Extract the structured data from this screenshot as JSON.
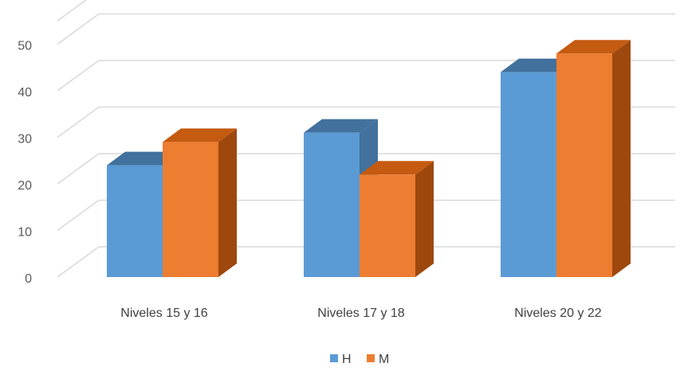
{
  "chart_data": {
    "type": "bar",
    "style": "3d-clustered-column",
    "categories": [
      "Niveles 15 y 16",
      "Niveles 17 y 18",
      "Niveles 20 y 22"
    ],
    "series": [
      {
        "name": "H",
        "values": [
          24,
          31,
          44
        ],
        "color": "#5B9BD5",
        "top_color": "#41719C",
        "side_color": "#41719C"
      },
      {
        "name": "M",
        "values": [
          29,
          22,
          48
        ],
        "color": "#ED7D31",
        "top_color": "#C55A11",
        "side_color": "#9E480E"
      }
    ],
    "y_ticks": [
      "0",
      "10",
      "20",
      "30",
      "40",
      "50"
    ],
    "ylim": [
      0,
      55
    ],
    "grid": true,
    "legend": "bottom-center",
    "title": "",
    "xlabel": "",
    "ylabel": ""
  }
}
